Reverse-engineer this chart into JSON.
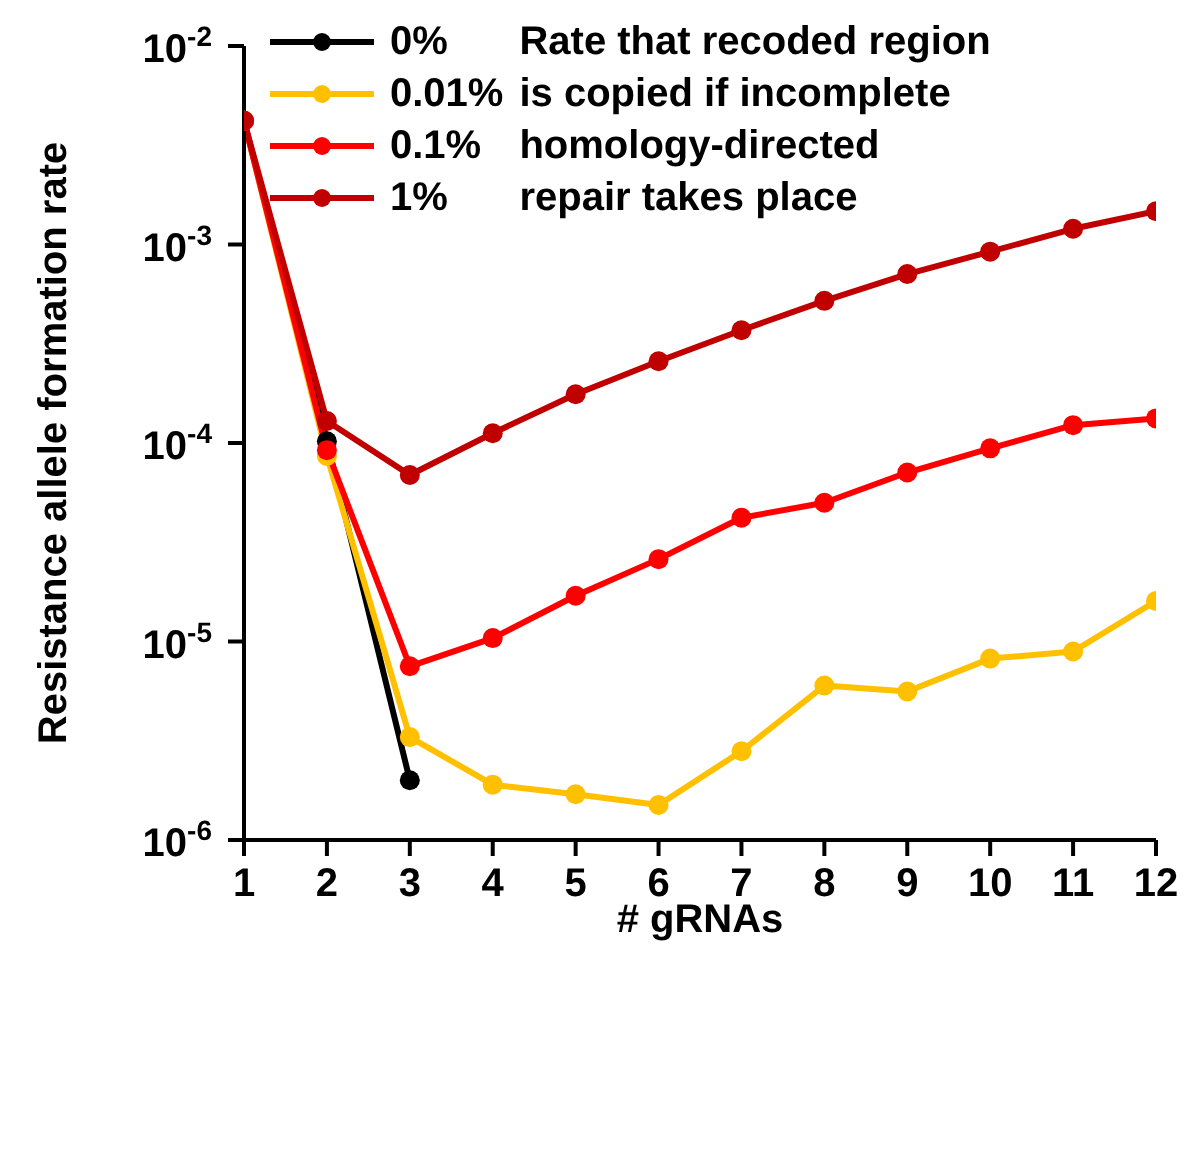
{
  "chart_data": {
    "type": "line",
    "xlabel": "# gRNAs",
    "ylabel": "Resistance allele formation rate",
    "legend_title": "Rate that recoded region is copied if incomplete homology-directed repair takes place",
    "x": [
      1,
      2,
      3,
      4,
      5,
      6,
      7,
      8,
      9,
      10,
      11,
      12
    ],
    "series": [
      {
        "name": "0%",
        "color": "#000000",
        "values": [
          0.0042,
          0.000102,
          2e-06,
          null,
          null,
          null,
          null,
          null,
          null,
          null,
          null,
          null
        ]
      },
      {
        "name": "0.01%",
        "color": "#ffc000",
        "values": [
          0.0042,
          8.6e-05,
          3.3e-06,
          1.9e-06,
          1.7e-06,
          1.5e-06,
          2.8e-06,
          6e-06,
          5.6e-06,
          8.2e-06,
          8.9e-06,
          1.6e-05
        ]
      },
      {
        "name": "0.1%",
        "color": "#ff0000",
        "values": [
          0.0042,
          9.2e-05,
          7.5e-06,
          1.04e-05,
          1.7e-05,
          2.6e-05,
          4.2e-05,
          5e-05,
          7.1e-05,
          9.4e-05,
          0.000123,
          0.000133
        ]
      },
      {
        "name": "1%",
        "color": "#c00000",
        "values": [
          0.0042,
          0.000129,
          6.9e-05,
          0.000112,
          0.000176,
          0.000258,
          0.00037,
          0.00052,
          0.00071,
          0.00092,
          0.0012,
          0.00147
        ]
      }
    ],
    "xlim": [
      1,
      12
    ],
    "xticks": [
      1,
      2,
      3,
      4,
      5,
      6,
      7,
      8,
      9,
      10,
      11,
      12
    ],
    "ylim": [
      1e-06,
      0.01
    ],
    "yticks": [
      {
        "value": 1e-06,
        "label": "10$^{-6}$"
      },
      {
        "value": 1e-05,
        "label": "10$^{-5}$"
      },
      {
        "value": 0.0001,
        "label": "10$^{-4}$"
      },
      {
        "value": 0.001,
        "label": "10$^{-3}$"
      },
      {
        "value": 0.01,
        "label": "10$^{-2}$"
      }
    ],
    "log": "y",
    "grid": false,
    "legend": "top left",
    "marker": "circle",
    "line_style": "solid"
  }
}
